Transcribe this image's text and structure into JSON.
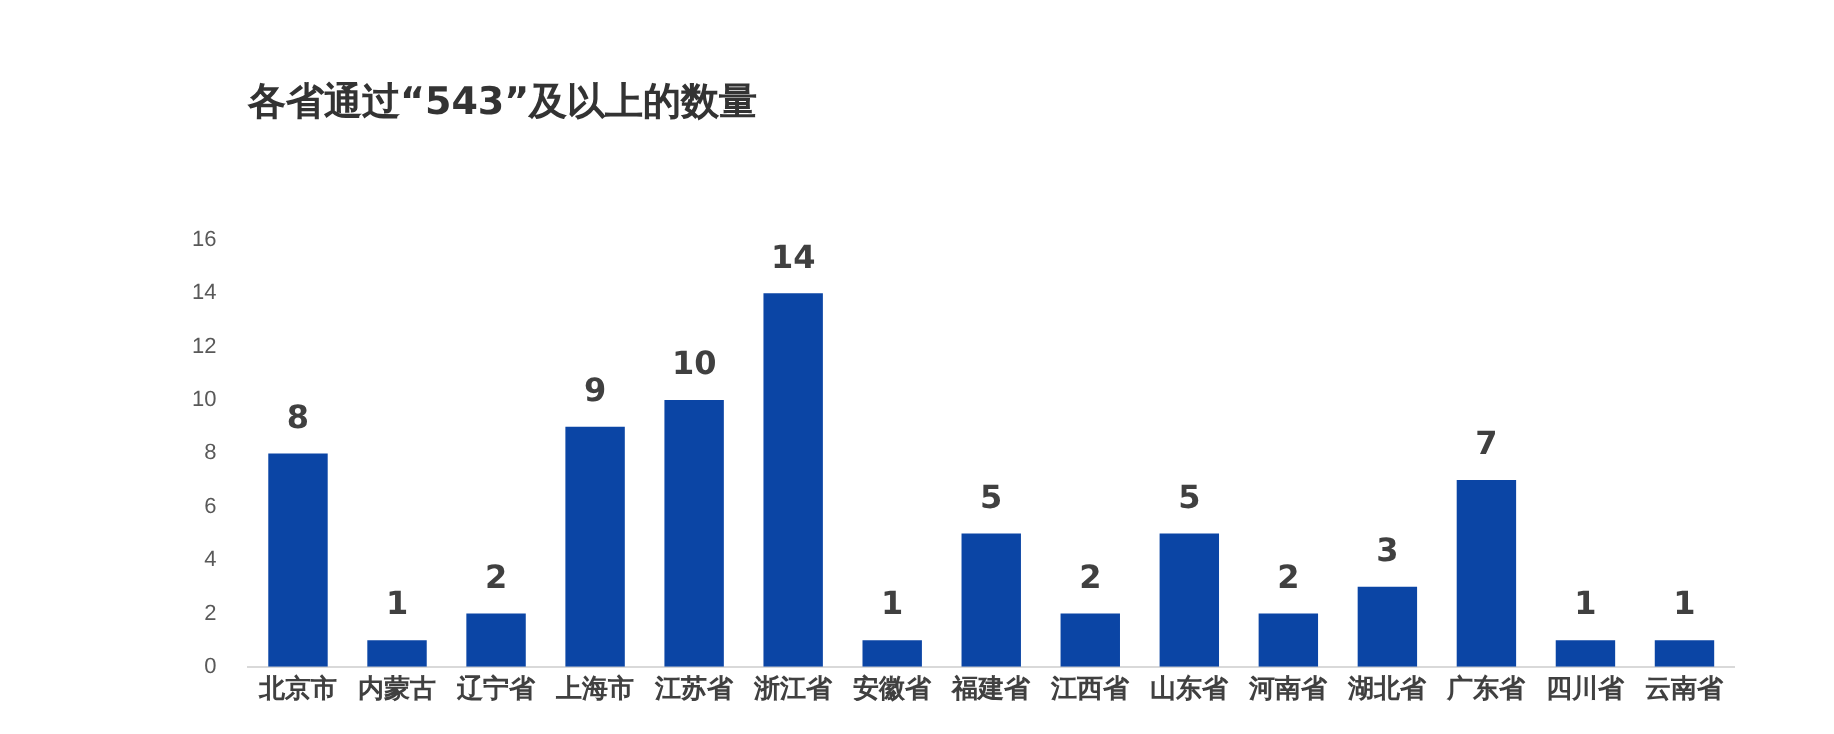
{
  "chart_data": {
    "type": "bar",
    "title": "各省通过“543”及以上的数量",
    "categories": [
      "北京市",
      "内蒙古",
      "辽宁省",
      "上海市",
      "江苏省",
      "浙江省",
      "安徽省",
      "福建省",
      "江西省",
      "山东省",
      "河南省",
      "湖北省",
      "广东省",
      "四川省",
      "云南省"
    ],
    "values": [
      8,
      1,
      2,
      9,
      10,
      14,
      1,
      5,
      2,
      5,
      2,
      3,
      7,
      1,
      1
    ],
    "color": "#0b45a5",
    "ylim": [
      0,
      16
    ],
    "yticks": [
      0,
      2,
      4,
      6,
      8,
      10,
      12,
      14,
      16
    ],
    "grid": false,
    "legend": false,
    "data_labels": true
  }
}
